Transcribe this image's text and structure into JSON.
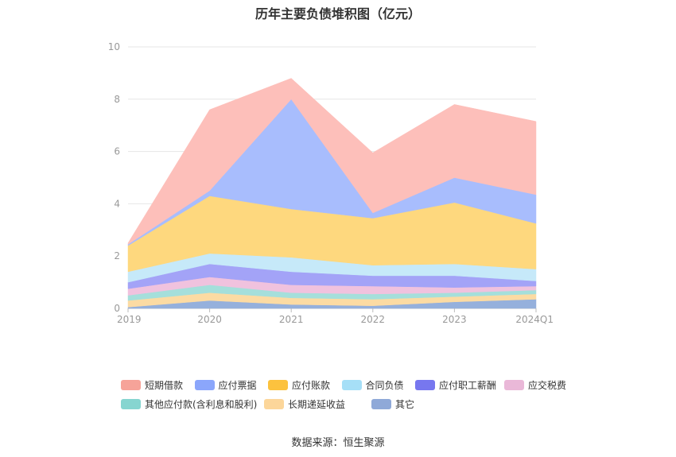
{
  "chart_data": {
    "type": "area",
    "stacked": true,
    "title": "历年主要负债堆积图（亿元）",
    "source": "数据来源：恒生聚源",
    "categories": [
      "2019",
      "2020",
      "2021",
      "2022",
      "2023",
      "2024Q1"
    ],
    "y_ticks": [
      "0",
      "2",
      "4",
      "6",
      "8",
      "10"
    ],
    "ylim": [
      0,
      10
    ],
    "grid": true,
    "legend_position": "bottom",
    "series": [
      {
        "name": "其它",
        "color": "#95b0dc",
        "values": [
          0.05,
          0.3,
          0.15,
          0.1,
          0.25,
          0.35
        ]
      },
      {
        "name": "长期递延收益",
        "color": "#fcdba3",
        "values": [
          0.25,
          0.3,
          0.25,
          0.25,
          0.2,
          0.2
        ]
      },
      {
        "name": "其他应付款(含利息和股利)",
        "color": "#a5dfdb",
        "values": [
          0.2,
          0.3,
          0.2,
          0.2,
          0.15,
          0.15
        ]
      },
      {
        "name": "应交税费",
        "color": "#f0c2de",
        "values": [
          0.25,
          0.3,
          0.3,
          0.3,
          0.2,
          0.15
        ]
      },
      {
        "name": "应付职工薪酬",
        "color": "#a3a3f7",
        "values": [
          0.25,
          0.5,
          0.5,
          0.4,
          0.45,
          0.2
        ]
      },
      {
        "name": "合同负债",
        "color": "#c6e9f9",
        "values": [
          0.4,
          0.4,
          0.55,
          0.4,
          0.45,
          0.45
        ]
      },
      {
        "name": "应付账款",
        "color": "#fed87e",
        "values": [
          1.0,
          2.2,
          1.85,
          1.8,
          2.35,
          1.75
        ]
      },
      {
        "name": "应付票据",
        "color": "#a8bdfd",
        "values": [
          0.05,
          0.2,
          4.2,
          0.2,
          0.95,
          1.1
        ]
      },
      {
        "name": "短期借款",
        "color": "#fdbfba",
        "values": [
          0.05,
          3.1,
          0.8,
          2.3,
          2.8,
          2.8
        ]
      }
    ],
    "legend": [
      {
        "name": "短期借款",
        "color": "#f6a399"
      },
      {
        "name": "应付票据",
        "color": "#8ba6fb"
      },
      {
        "name": "应付账款",
        "color": "#fcc23e"
      },
      {
        "name": "合同负债",
        "color": "#a6dff7"
      },
      {
        "name": "应付职工薪酬",
        "color": "#7777ef"
      },
      {
        "name": "应交税费",
        "color": "#eab8d8"
      },
      {
        "name": "其他应付款(含利息和股利)",
        "color": "#86d5d0"
      },
      {
        "name": "长期递延收益",
        "color": "#fcd69a"
      },
      {
        "name": "其它",
        "color": "#8fa9d8"
      }
    ]
  }
}
